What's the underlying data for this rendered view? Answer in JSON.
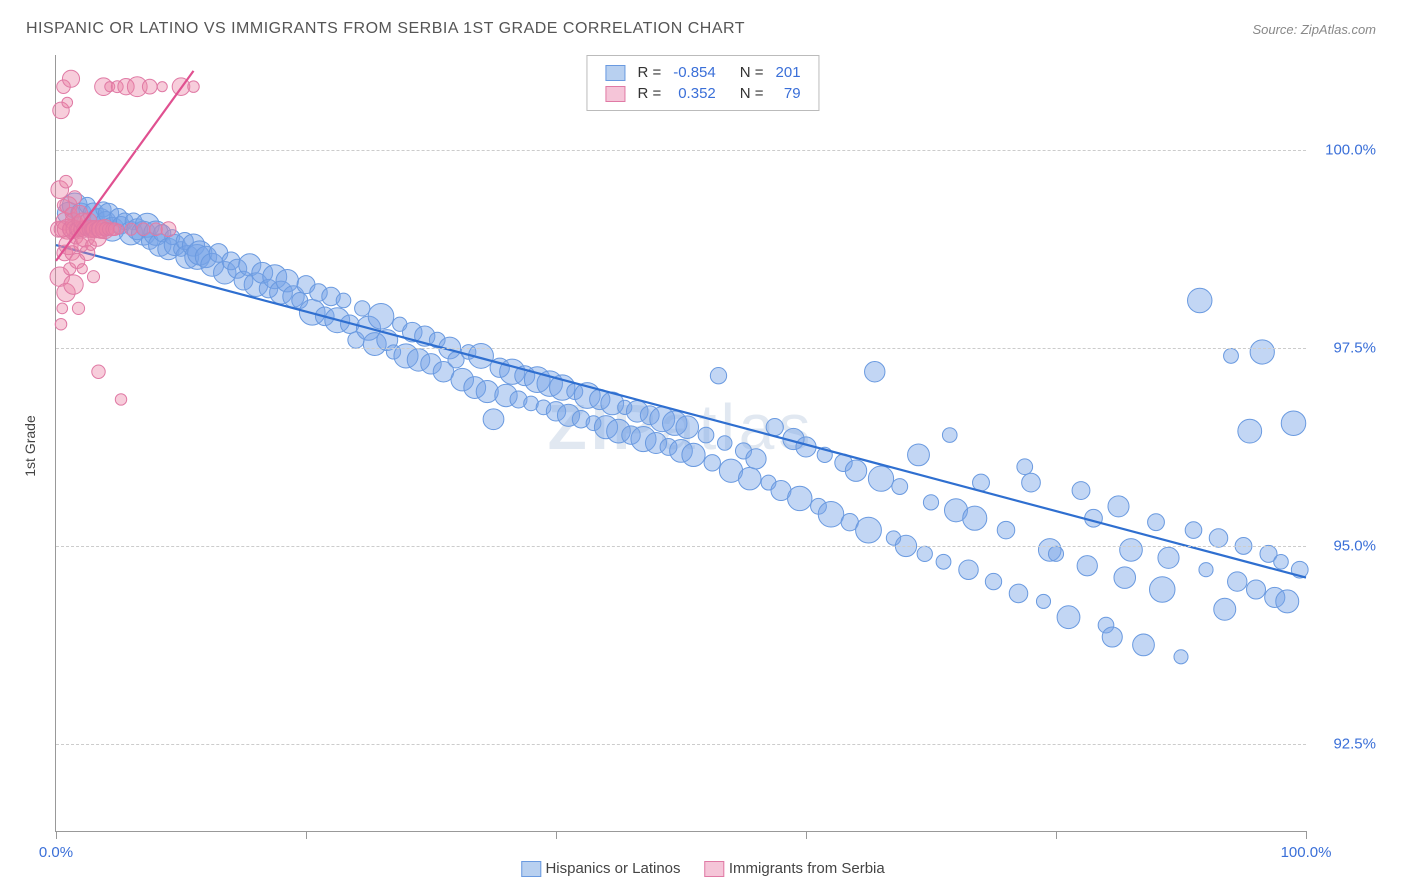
{
  "title": "HISPANIC OR LATINO VS IMMIGRANTS FROM SERBIA 1ST GRADE CORRELATION CHART",
  "source": "Source: ZipAtlas.com",
  "y_axis_label": "1st Grade",
  "watermark": {
    "part1": "ZIP",
    "part2": "atlas"
  },
  "chart": {
    "type": "scatter",
    "background_color": "#ffffff",
    "grid_color": "#cccccc",
    "axis_color": "#999999",
    "text_color": "#444444",
    "value_color": "#3a6fd8",
    "xlim": [
      0,
      100
    ],
    "ylim": [
      91.4,
      101.2
    ],
    "x_ticks": [
      0,
      20,
      40,
      60,
      80,
      100
    ],
    "x_tick_labels": {
      "0": "0.0%",
      "100": "100.0%"
    },
    "y_gridlines": [
      92.5,
      95.0,
      97.5,
      100.0
    ],
    "y_tick_labels": [
      "92.5%",
      "95.0%",
      "97.5%",
      "100.0%"
    ],
    "series": [
      {
        "name": "Hispanics or Latinos",
        "color_fill": "rgba(120,165,230,0.45)",
        "color_stroke": "#6a9ae0",
        "swatch_fill": "#b8d0f0",
        "swatch_border": "#6a9ae0",
        "marker_r_min": 7,
        "marker_r_max": 13,
        "r_value": "-0.854",
        "n_value": "201",
        "trend": {
          "x1": 0,
          "y1": 98.8,
          "x2": 100,
          "y2": 94.6,
          "color": "#2f6fd0",
          "width": 2.2
        },
        "points": [
          [
            1,
            99.2
          ],
          [
            1.5,
            99.3
          ],
          [
            2,
            99.2
          ],
          [
            2.5,
            99.3
          ],
          [
            3,
            99.2
          ],
          [
            3.2,
            99.15
          ],
          [
            3.5,
            99.1
          ],
          [
            3.8,
            99.25
          ],
          [
            4,
            99.1
          ],
          [
            4.2,
            99.2
          ],
          [
            4.5,
            99.0
          ],
          [
            5,
            99.15
          ],
          [
            5.2,
            99.05
          ],
          [
            5.5,
            99.1
          ],
          [
            6,
            98.95
          ],
          [
            6.2,
            99.1
          ],
          [
            6.5,
            99.0
          ],
          [
            7,
            98.95
          ],
          [
            7.3,
            99.05
          ],
          [
            7.5,
            98.85
          ],
          [
            8,
            98.95
          ],
          [
            8.3,
            98.8
          ],
          [
            8.5,
            98.95
          ],
          [
            9,
            98.75
          ],
          [
            9.3,
            98.9
          ],
          [
            9.5,
            98.8
          ],
          [
            10,
            98.75
          ],
          [
            10.3,
            98.85
          ],
          [
            10.5,
            98.65
          ],
          [
            11,
            98.8
          ],
          [
            11.3,
            98.65
          ],
          [
            11.5,
            98.7
          ],
          [
            12,
            98.65
          ],
          [
            12.5,
            98.55
          ],
          [
            13,
            98.7
          ],
          [
            13.5,
            98.45
          ],
          [
            14,
            98.6
          ],
          [
            14.5,
            98.5
          ],
          [
            15,
            98.35
          ],
          [
            15.5,
            98.55
          ],
          [
            16,
            98.3
          ],
          [
            16.5,
            98.45
          ],
          [
            17,
            98.25
          ],
          [
            17.5,
            98.4
          ],
          [
            18,
            98.2
          ],
          [
            18.5,
            98.35
          ],
          [
            19,
            98.15
          ],
          [
            19.5,
            98.1
          ],
          [
            20,
            98.3
          ],
          [
            20.5,
            97.95
          ],
          [
            21,
            98.2
          ],
          [
            21.5,
            97.9
          ],
          [
            22,
            98.15
          ],
          [
            22.5,
            97.85
          ],
          [
            23,
            98.1
          ],
          [
            23.5,
            97.8
          ],
          [
            24,
            97.6
          ],
          [
            24.5,
            98.0
          ],
          [
            25,
            97.75
          ],
          [
            25.5,
            97.55
          ],
          [
            26,
            97.9
          ],
          [
            26.5,
            97.6
          ],
          [
            27,
            97.45
          ],
          [
            27.5,
            97.8
          ],
          [
            28,
            97.4
          ],
          [
            28.5,
            97.7
          ],
          [
            29,
            97.35
          ],
          [
            29.5,
            97.65
          ],
          [
            30,
            97.3
          ],
          [
            30.5,
            97.6
          ],
          [
            31,
            97.2
          ],
          [
            31.5,
            97.5
          ],
          [
            32,
            97.35
          ],
          [
            32.5,
            97.1
          ],
          [
            33,
            97.45
          ],
          [
            33.5,
            97.0
          ],
          [
            34,
            97.4
          ],
          [
            34.5,
            96.95
          ],
          [
            35,
            96.6
          ],
          [
            35.5,
            97.25
          ],
          [
            36,
            96.9
          ],
          [
            36.5,
            97.2
          ],
          [
            37,
            96.85
          ],
          [
            37.5,
            97.15
          ],
          [
            38,
            96.8
          ],
          [
            38.5,
            97.1
          ],
          [
            39,
            96.75
          ],
          [
            39.5,
            97.05
          ],
          [
            40,
            96.7
          ],
          [
            40.5,
            97.0
          ],
          [
            41,
            96.65
          ],
          [
            41.5,
            96.95
          ],
          [
            42,
            96.6
          ],
          [
            42.5,
            96.9
          ],
          [
            43,
            96.55
          ],
          [
            43.5,
            96.85
          ],
          [
            44,
            96.5
          ],
          [
            44.5,
            96.8
          ],
          [
            45,
            96.45
          ],
          [
            45.5,
            96.75
          ],
          [
            46,
            96.4
          ],
          [
            46.5,
            96.7
          ],
          [
            47,
            96.35
          ],
          [
            47.5,
            96.65
          ],
          [
            48,
            96.3
          ],
          [
            48.5,
            96.6
          ],
          [
            49,
            96.25
          ],
          [
            49.5,
            96.55
          ],
          [
            50,
            96.2
          ],
          [
            50.5,
            96.5
          ],
          [
            51,
            96.15
          ],
          [
            52,
            96.4
          ],
          [
            52.5,
            96.05
          ],
          [
            53,
            97.15
          ],
          [
            53.5,
            96.3
          ],
          [
            54,
            95.95
          ],
          [
            55,
            96.2
          ],
          [
            55.5,
            95.85
          ],
          [
            56,
            96.1
          ],
          [
            57,
            95.8
          ],
          [
            57.5,
            96.5
          ],
          [
            58,
            95.7
          ],
          [
            59,
            96.35
          ],
          [
            59.5,
            95.6
          ],
          [
            60,
            96.25
          ],
          [
            61,
            95.5
          ],
          [
            61.5,
            96.15
          ],
          [
            62,
            95.4
          ],
          [
            63,
            96.05
          ],
          [
            63.5,
            95.3
          ],
          [
            64,
            95.95
          ],
          [
            65,
            95.2
          ],
          [
            65.5,
            97.2
          ],
          [
            66,
            95.85
          ],
          [
            67,
            95.1
          ],
          [
            67.5,
            95.75
          ],
          [
            68,
            95.0
          ],
          [
            69,
            96.15
          ],
          [
            69.5,
            94.9
          ],
          [
            70,
            95.55
          ],
          [
            71,
            94.8
          ],
          [
            71.5,
            96.4
          ],
          [
            72,
            95.45
          ],
          [
            73,
            94.7
          ],
          [
            73.5,
            95.35
          ],
          [
            74,
            95.8
          ],
          [
            75,
            94.55
          ],
          [
            76,
            95.2
          ],
          [
            77,
            94.4
          ],
          [
            77.5,
            96.0
          ],
          [
            78,
            95.8
          ],
          [
            79,
            94.3
          ],
          [
            79.5,
            94.95
          ],
          [
            80,
            94.9
          ],
          [
            81,
            94.1
          ],
          [
            82,
            95.7
          ],
          [
            82.5,
            94.75
          ],
          [
            83,
            95.35
          ],
          [
            84,
            94.0
          ],
          [
            84.5,
            93.85
          ],
          [
            85,
            95.5
          ],
          [
            85.5,
            94.6
          ],
          [
            86,
            94.95
          ],
          [
            87,
            93.75
          ],
          [
            88,
            95.3
          ],
          [
            88.5,
            94.45
          ],
          [
            89,
            94.85
          ],
          [
            90,
            93.6
          ],
          [
            91,
            95.2
          ],
          [
            91.5,
            98.1
          ],
          [
            92,
            94.7
          ],
          [
            93,
            95.1
          ],
          [
            93.5,
            94.2
          ],
          [
            94,
            97.4
          ],
          [
            94.5,
            94.55
          ],
          [
            95,
            95.0
          ],
          [
            95.5,
            96.45
          ],
          [
            96,
            94.45
          ],
          [
            96.5,
            97.45
          ],
          [
            97,
            94.9
          ],
          [
            97.5,
            94.35
          ],
          [
            98,
            94.8
          ],
          [
            98.5,
            94.3
          ],
          [
            99,
            96.55
          ],
          [
            99.5,
            94.7
          ]
        ]
      },
      {
        "name": "Immigrants from Serbia",
        "color_fill": "rgba(235,130,165,0.4)",
        "color_stroke": "#e07aa5",
        "swatch_fill": "#f5c5d8",
        "swatch_border": "#e07aa5",
        "marker_r_min": 5,
        "marker_r_max": 10,
        "r_value": "0.352",
        "n_value": "79",
        "trend": {
          "x1": 0,
          "y1": 98.6,
          "x2": 11,
          "y2": 101.0,
          "color": "#e05090",
          "width": 2.2
        },
        "points": [
          [
            0.2,
            99.0
          ],
          [
            0.3,
            98.4
          ],
          [
            0.3,
            99.5
          ],
          [
            0.4,
            97.8
          ],
          [
            0.4,
            100.5
          ],
          [
            0.5,
            99.0
          ],
          [
            0.5,
            98.0
          ],
          [
            0.6,
            99.3
          ],
          [
            0.6,
            100.8
          ],
          [
            0.7,
            98.7
          ],
          [
            0.7,
            99.1
          ],
          [
            0.8,
            99.6
          ],
          [
            0.8,
            98.2
          ],
          [
            0.9,
            99.0
          ],
          [
            0.9,
            100.6
          ],
          [
            1.0,
            98.8
          ],
          [
            1.0,
            99.3
          ],
          [
            1.1,
            99.0
          ],
          [
            1.1,
            98.5
          ],
          [
            1.2,
            99.2
          ],
          [
            1.2,
            100.9
          ],
          [
            1.3,
            99.0
          ],
          [
            1.3,
            98.7
          ],
          [
            1.4,
            99.1
          ],
          [
            1.4,
            98.3
          ],
          [
            1.5,
            99.0
          ],
          [
            1.5,
            99.4
          ],
          [
            1.6,
            98.9
          ],
          [
            1.6,
            99.0
          ],
          [
            1.7,
            99.1
          ],
          [
            1.7,
            98.6
          ],
          [
            1.8,
            99.0
          ],
          [
            1.8,
            98.0
          ],
          [
            1.9,
            99.2
          ],
          [
            1.9,
            99.0
          ],
          [
            2.0,
            98.8
          ],
          [
            2.0,
            99.0
          ],
          [
            2.1,
            99.1
          ],
          [
            2.1,
            98.5
          ],
          [
            2.2,
            99.0
          ],
          [
            2.3,
            98.9
          ],
          [
            2.3,
            99.0
          ],
          [
            2.4,
            99.0
          ],
          [
            2.5,
            99.0
          ],
          [
            2.5,
            98.7
          ],
          [
            2.6,
            99.1
          ],
          [
            2.7,
            99.0
          ],
          [
            2.8,
            98.8
          ],
          [
            2.8,
            99.0
          ],
          [
            2.9,
            99.0
          ],
          [
            3.0,
            99.0
          ],
          [
            3.0,
            98.4
          ],
          [
            3.1,
            99.0
          ],
          [
            3.2,
            99.0
          ],
          [
            3.3,
            98.9
          ],
          [
            3.4,
            97.2
          ],
          [
            3.5,
            99.0
          ],
          [
            3.6,
            99.0
          ],
          [
            3.7,
            99.0
          ],
          [
            3.8,
            100.8
          ],
          [
            3.9,
            99.0
          ],
          [
            4.0,
            99.0
          ],
          [
            4.2,
            99.0
          ],
          [
            4.3,
            100.8
          ],
          [
            4.5,
            99.0
          ],
          [
            4.7,
            99.0
          ],
          [
            4.9,
            100.8
          ],
          [
            5.0,
            99.0
          ],
          [
            5.2,
            96.85
          ],
          [
            5.6,
            100.8
          ],
          [
            6.0,
            99.0
          ],
          [
            6.5,
            100.8
          ],
          [
            7.0,
            99.0
          ],
          [
            7.5,
            100.8
          ],
          [
            8.0,
            99.0
          ],
          [
            8.5,
            100.8
          ],
          [
            9.0,
            99.0
          ],
          [
            10.0,
            100.8
          ],
          [
            11.0,
            100.8
          ]
        ]
      }
    ]
  },
  "legend_top": {
    "r_label": "R =",
    "n_label": "N ="
  },
  "legend_bottom": {
    "label1": "Hispanics or Latinos",
    "label2": "Immigrants from Serbia"
  }
}
